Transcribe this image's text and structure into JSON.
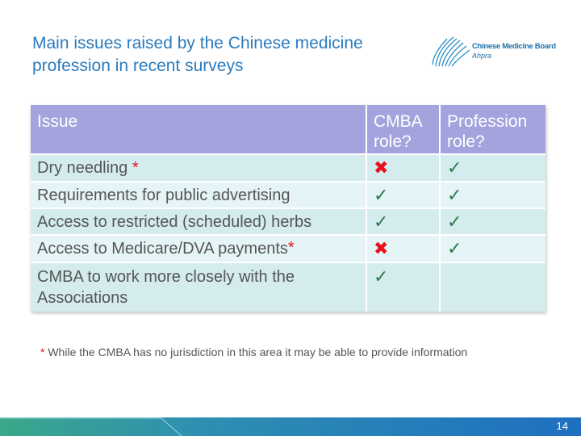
{
  "header": {
    "title": "Main issues raised by the Chinese medicine profession in recent surveys",
    "logo": {
      "name": "Chinese Medicine Board",
      "org": "Ahpra"
    }
  },
  "table": {
    "columns": [
      "Issue",
      "CMBA role?",
      "Profession role?"
    ],
    "rows": [
      {
        "issue": "Dry needling",
        "note": "*",
        "cmba": "✖",
        "profession": "✓"
      },
      {
        "issue": "Requirements for public advertising",
        "cmba": "✓",
        "profession": "✓"
      },
      {
        "issue": "Access to restricted (scheduled) herbs",
        "cmba": "✓",
        "profession": "✓"
      },
      {
        "issue": "Access to Medicare/DVA payments",
        "note": "*",
        "cmba": "✖",
        "profession": "✓"
      },
      {
        "issue": "CMBA to work more closely with the Associations",
        "cmba": "✓",
        "profession": null
      }
    ]
  },
  "footnote": {
    "marker": "*",
    "text": "While the CMBA has no jurisdiction in this area it may be able to provide information"
  },
  "page_number": "14"
}
